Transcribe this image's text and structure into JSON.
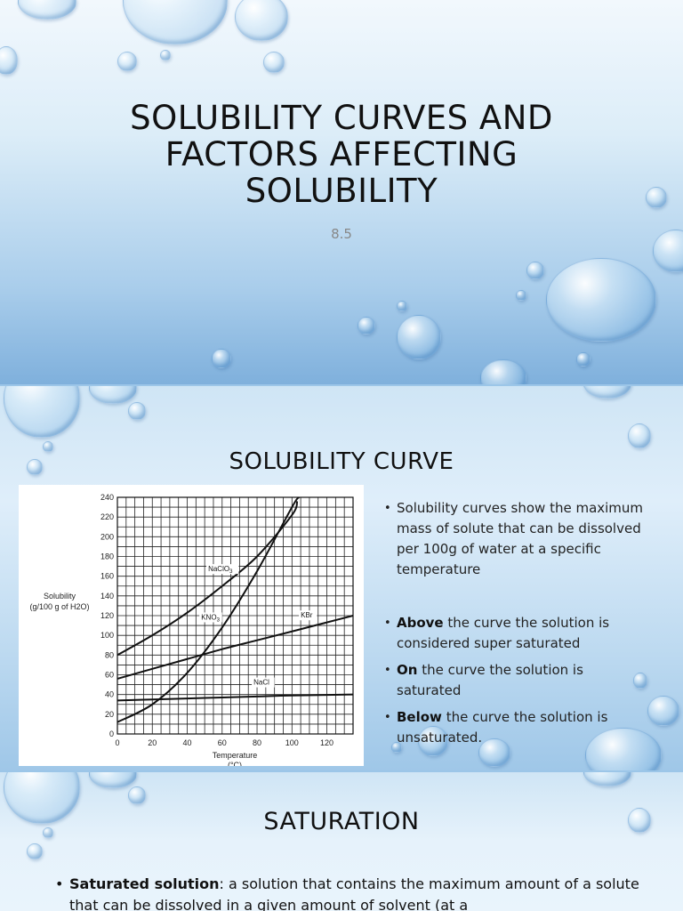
{
  "slide1": {
    "title": "SOLUBILITY CURVES AND FACTORS AFFECTING SOLUBILITY",
    "subtitle": "8.5"
  },
  "slide2": {
    "title": "SOLUBILITY CURVE",
    "bullets": [
      {
        "bold": "",
        "text": "Solubility curves show the maximum mass of solute that can be dissolved per 100g of water at a specific temperature"
      },
      {
        "bold": "Above",
        "text": " the curve the solution is considered super saturated"
      },
      {
        "bold": "On",
        "text": " the curve the solution is saturated"
      },
      {
        "bold": "Below",
        "text": " the curve the solution is unsaturated."
      }
    ]
  },
  "slide3": {
    "title": "SATURATION",
    "bullet_bold": "Saturated solution",
    "bullet_text": ": a solution that contains the maximum amount of a solute that can be dissolved in a given amount of solvent (at a"
  },
  "chart_data": {
    "type": "line",
    "xlabel": "Temperature (°C)",
    "ylabel": "Solubility (g/100 g of H2O)",
    "xlim": [
      0,
      135
    ],
    "ylim": [
      0,
      240
    ],
    "xticks": [
      0,
      20,
      40,
      60,
      80,
      100,
      120
    ],
    "yticks": [
      0,
      20,
      40,
      60,
      80,
      100,
      120,
      140,
      160,
      180,
      200,
      220,
      240
    ],
    "grid": true,
    "series": [
      {
        "name": "NaClO3",
        "x": [
          0,
          20,
          40,
          60,
          80,
          100,
          103
        ],
        "y": [
          80,
          100,
          123,
          150,
          180,
          222,
          236
        ]
      },
      {
        "name": "KNO3",
        "x": [
          0,
          20,
          40,
          60,
          80,
          100,
          104
        ],
        "y": [
          12,
          30,
          62,
          108,
          165,
          230,
          240
        ]
      },
      {
        "name": "KBr",
        "x": [
          0,
          20,
          40,
          60,
          80,
          100,
          135
        ],
        "y": [
          56,
          66,
          76,
          86,
          95,
          104,
          120
        ]
      },
      {
        "name": "NaCl",
        "x": [
          0,
          20,
          40,
          60,
          80,
          100,
          135
        ],
        "y": [
          34,
          35,
          36,
          37,
          38,
          39,
          40
        ]
      }
    ],
    "labels": [
      {
        "series": "NaClO3",
        "text": "NaClO3",
        "at": [
          52,
          165
        ]
      },
      {
        "series": "KNO3",
        "text": "KNO3",
        "at": [
          48,
          116
        ]
      },
      {
        "series": "KBr",
        "text": "KBr",
        "at": [
          105,
          118
        ]
      },
      {
        "series": "NaCl",
        "text": "NaCl",
        "at": [
          78,
          50
        ]
      }
    ]
  }
}
